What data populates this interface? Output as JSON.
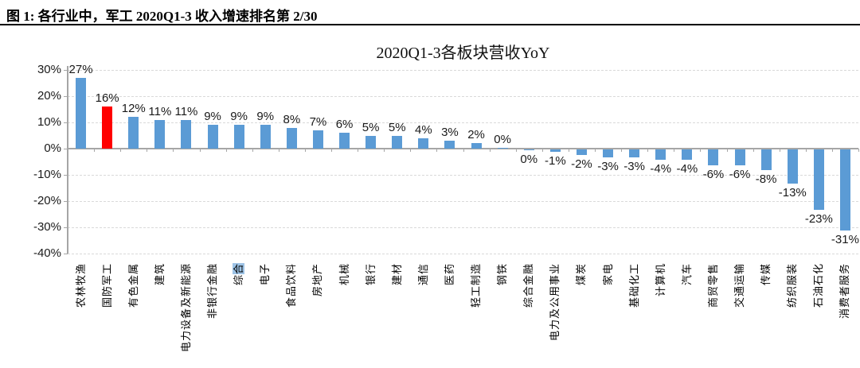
{
  "figure_header": {
    "title": "图 1: 各行业中，军工 2020Q1-3 收入增速排名第 2/30"
  },
  "chart_data": {
    "type": "bar",
    "title": "2020Q1-3各板块营收YoY",
    "categories": [
      "农林牧渔",
      "国防军工",
      "有色金属",
      "建筑",
      "电力设备及新能源",
      "非银行金融",
      "综合",
      "电子",
      "食品饮料",
      "房地产",
      "机械",
      "银行",
      "建材",
      "通信",
      "医药",
      "轻工制造",
      "钢铁",
      "综合金融",
      "电力及公用事业",
      "煤炭",
      "家电",
      "基础化工",
      "计算机",
      "汽车",
      "商贸零售",
      "交通运输",
      "传媒",
      "纺织服装",
      "石油石化",
      "消费者服务"
    ],
    "values": [
      27,
      16,
      12,
      11,
      11,
      9,
      9,
      9,
      8,
      7,
      6,
      5,
      5,
      4,
      3,
      2,
      0.2,
      -0.4,
      -1,
      -2,
      -3,
      -3,
      -4,
      -4,
      -6,
      -6,
      -8,
      -13,
      -23,
      -31
    ],
    "value_labels": [
      "27%",
      "16%",
      "12%",
      "11%",
      "11%",
      "9%",
      "9%",
      "9%",
      "8%",
      "7%",
      "6%",
      "5%",
      "5%",
      "4%",
      "3%",
      "2%",
      "0%",
      "0%",
      "-1%",
      "-2%",
      "-3%",
      "-3%",
      "-4%",
      "-4%",
      "-6%",
      "-6%",
      "-8%",
      "-13%",
      "-23%",
      "-31%"
    ],
    "highlight_index": 1,
    "bar_color": "#5B9BD5",
    "highlight_bar_color": "#FF0000",
    "selected_char": {
      "category_index": 6,
      "char_index": 1,
      "background": "#9DC3E6"
    },
    "xlabel": "",
    "ylabel": "",
    "ylim": [
      -40,
      30
    ],
    "ytick_values": [
      30,
      20,
      10,
      0,
      -10,
      -20,
      -30,
      -40
    ],
    "ytick_labels": [
      "30%",
      "20%",
      "10%",
      "0%",
      "-10%",
      "-20%",
      "-30%",
      "-40%"
    ],
    "grid": "horizontal-dashed",
    "gridline_color": "#D9D9D9",
    "axis_color": "#A6A6A6",
    "legend": "none"
  }
}
